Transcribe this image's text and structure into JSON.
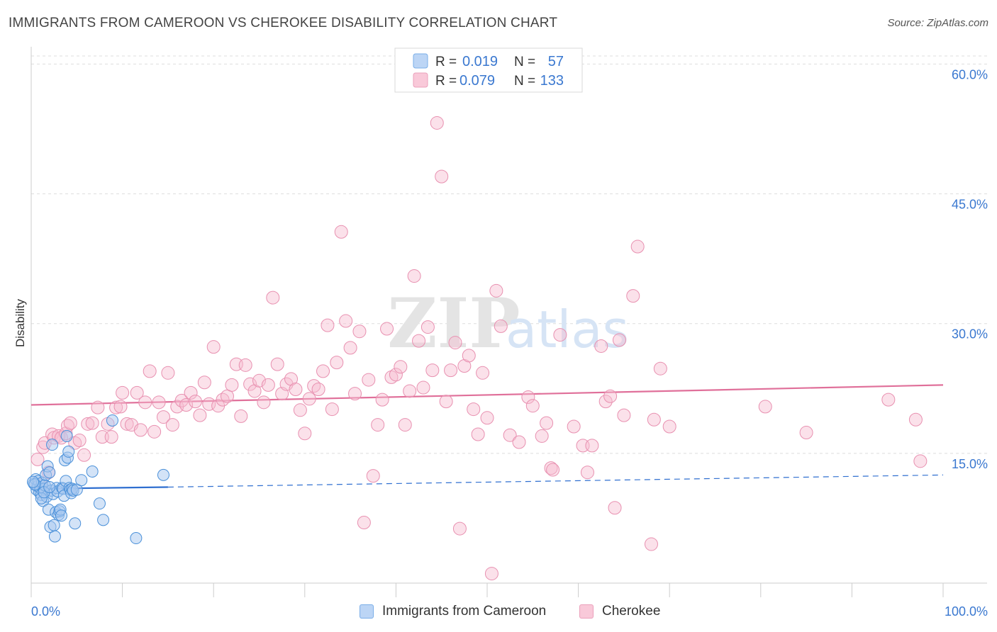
{
  "title": "IMMIGRANTS FROM CAMEROON VS CHEROKEE DISABILITY CORRELATION CHART",
  "source": "Source: ZipAtlas.com",
  "watermark": {
    "zip": "ZIP",
    "atlas": "atlas"
  },
  "colors": {
    "blue_fill": "#a8c8f0",
    "blue_stroke": "#4a90d9",
    "blue_line": "#2f6fd0",
    "pink_fill": "#f7bcd0",
    "pink_stroke": "#e890b0",
    "pink_line": "#e0709a",
    "axis_text": "#3a78d0",
    "grid": "#dddddd"
  },
  "legend_top": {
    "rows": [
      {
        "r_label": "R =",
        "r_value": "0.019",
        "n_label": "N =",
        "n_value": "57"
      },
      {
        "r_label": "R =",
        "r_value": "0.079",
        "n_label": "N =",
        "n_value": "133"
      }
    ]
  },
  "chart_data": {
    "type": "scatter",
    "title": "IMMIGRANTS FROM CAMEROON VS CHEROKEE DISABILITY CORRELATION CHART",
    "xlabel": "",
    "ylabel": "Disability",
    "xlim": [
      0,
      100
    ],
    "ylim": [
      0,
      62
    ],
    "x_tick_labels": [
      "0.0%",
      "100.0%"
    ],
    "y_ticks": [
      15,
      30,
      45,
      60
    ],
    "y_tick_labels": [
      "15.0%",
      "30.0%",
      "45.0%",
      "60.0%"
    ],
    "grid": true,
    "legend_position": "top-center",
    "series": [
      {
        "name": "Immigrants from Cameroon",
        "r": 0.019,
        "n": 57,
        "trend_solid": [
          [
            0,
            10.9
          ],
          [
            15,
            11.1
          ]
        ],
        "trend_dashed": [
          [
            15,
            11.1
          ],
          [
            100,
            12.5
          ]
        ],
        "points": [
          [
            0.3,
            11.5
          ],
          [
            0.5,
            12.0
          ],
          [
            0.6,
            10.8
          ],
          [
            0.7,
            11.2
          ],
          [
            0.8,
            11.8
          ],
          [
            0.9,
            10.5
          ],
          [
            1.0,
            11.0
          ],
          [
            1.1,
            10.2
          ],
          [
            1.2,
            11.6
          ],
          [
            1.3,
            9.5
          ],
          [
            1.4,
            10.9
          ],
          [
            1.5,
            11.3
          ],
          [
            1.6,
            12.5
          ],
          [
            1.7,
            10.0
          ],
          [
            1.8,
            13.5
          ],
          [
            1.9,
            8.5
          ],
          [
            2.0,
            12.8
          ],
          [
            2.1,
            6.5
          ],
          [
            2.2,
            10.7
          ],
          [
            2.3,
            16.0
          ],
          [
            2.4,
            10.3
          ],
          [
            2.5,
            6.7
          ],
          [
            2.6,
            5.4
          ],
          [
            2.7,
            8.2
          ],
          [
            2.8,
            11.0
          ],
          [
            2.9,
            10.6
          ],
          [
            3.0,
            7.9
          ],
          [
            3.1,
            8.3
          ],
          [
            3.2,
            8.5
          ],
          [
            3.3,
            7.8
          ],
          [
            3.4,
            11.0
          ],
          [
            3.5,
            10.9
          ],
          [
            3.6,
            10.1
          ],
          [
            3.7,
            14.2
          ],
          [
            3.8,
            11.8
          ],
          [
            3.9,
            17.0
          ],
          [
            4.0,
            14.5
          ],
          [
            4.1,
            15.2
          ],
          [
            4.2,
            11.0
          ],
          [
            4.3,
            10.8
          ],
          [
            4.4,
            10.4
          ],
          [
            4.5,
            10.9
          ],
          [
            4.6,
            10.7
          ],
          [
            4.8,
            6.9
          ],
          [
            5.0,
            10.8
          ],
          [
            5.5,
            11.9
          ],
          [
            6.7,
            12.9
          ],
          [
            7.5,
            9.2
          ],
          [
            7.9,
            7.3
          ],
          [
            8.9,
            18.8
          ],
          [
            11.5,
            5.2
          ],
          [
            14.5,
            12.5
          ],
          [
            1.1,
            9.8
          ],
          [
            1.4,
            10.5
          ],
          [
            0.4,
            11.4
          ],
          [
            0.2,
            11.7
          ],
          [
            2.0,
            11.1
          ]
        ]
      },
      {
        "name": "Cherokee",
        "r": 0.079,
        "n": 133,
        "trend": [
          [
            0,
            20.6
          ],
          [
            100,
            22.9
          ]
        ],
        "points": [
          [
            0.7,
            14.3
          ],
          [
            1.1,
            11.3
          ],
          [
            1.3,
            15.7
          ],
          [
            1.5,
            16.2
          ],
          [
            1.9,
            12.8
          ],
          [
            2.3,
            17.2
          ],
          [
            2.5,
            16.8
          ],
          [
            3.0,
            17.0
          ],
          [
            3.3,
            16.8
          ],
          [
            3.8,
            17.3
          ],
          [
            4.0,
            18.2
          ],
          [
            4.3,
            18.5
          ],
          [
            4.8,
            16.2
          ],
          [
            5.3,
            16.5
          ],
          [
            5.8,
            14.8
          ],
          [
            6.2,
            18.4
          ],
          [
            6.7,
            18.5
          ],
          [
            7.3,
            20.3
          ],
          [
            7.8,
            16.9
          ],
          [
            8.4,
            18.4
          ],
          [
            8.8,
            16.9
          ],
          [
            9.3,
            20.3
          ],
          [
            9.8,
            20.4
          ],
          [
            10.0,
            22.0
          ],
          [
            10.5,
            18.4
          ],
          [
            11.0,
            18.3
          ],
          [
            11.6,
            22.0
          ],
          [
            12.0,
            17.7
          ],
          [
            12.5,
            20.9
          ],
          [
            13.0,
            24.5
          ],
          [
            13.5,
            17.5
          ],
          [
            14.0,
            20.9
          ],
          [
            14.5,
            19.2
          ],
          [
            15.0,
            24.3
          ],
          [
            15.5,
            18.3
          ],
          [
            16.0,
            20.4
          ],
          [
            16.5,
            21.1
          ],
          [
            17.0,
            20.6
          ],
          [
            17.5,
            22.0
          ],
          [
            18.0,
            21.0
          ],
          [
            18.5,
            19.4
          ],
          [
            19.0,
            23.2
          ],
          [
            19.5,
            20.7
          ],
          [
            20.0,
            27.3
          ],
          [
            20.5,
            20.5
          ],
          [
            21.0,
            21.2
          ],
          [
            21.5,
            21.6
          ],
          [
            22.0,
            22.9
          ],
          [
            22.5,
            25.3
          ],
          [
            23.0,
            19.3
          ],
          [
            23.5,
            25.2
          ],
          [
            24.0,
            23.0
          ],
          [
            24.5,
            22.2
          ],
          [
            25.0,
            23.4
          ],
          [
            25.5,
            20.9
          ],
          [
            26.0,
            22.9
          ],
          [
            26.5,
            33.0
          ],
          [
            27.0,
            25.3
          ],
          [
            27.5,
            21.9
          ],
          [
            28.0,
            23.0
          ],
          [
            28.5,
            23.6
          ],
          [
            29.0,
            22.4
          ],
          [
            29.5,
            20.0
          ],
          [
            30.0,
            17.3
          ],
          [
            30.5,
            21.3
          ],
          [
            31.0,
            22.8
          ],
          [
            31.5,
            22.4
          ],
          [
            32.0,
            24.5
          ],
          [
            32.5,
            29.8
          ],
          [
            33.0,
            20.1
          ],
          [
            33.5,
            25.5
          ],
          [
            34.0,
            40.6
          ],
          [
            34.5,
            30.3
          ],
          [
            35.0,
            27.2
          ],
          [
            35.5,
            21.9
          ],
          [
            36.0,
            29.1
          ],
          [
            36.5,
            7.0
          ],
          [
            37.0,
            23.5
          ],
          [
            37.5,
            12.4
          ],
          [
            38.0,
            18.3
          ],
          [
            38.5,
            21.2
          ],
          [
            39.0,
            29.4
          ],
          [
            39.5,
            23.8
          ],
          [
            40.0,
            24.1
          ],
          [
            40.5,
            25.0
          ],
          [
            41.0,
            18.3
          ],
          [
            41.5,
            22.2
          ],
          [
            42.0,
            35.5
          ],
          [
            42.5,
            28.0
          ],
          [
            43.0,
            22.6
          ],
          [
            43.5,
            29.6
          ],
          [
            44.0,
            24.6
          ],
          [
            44.5,
            53.2
          ],
          [
            45.0,
            47.0
          ],
          [
            45.5,
            21.0
          ],
          [
            46.0,
            24.6
          ],
          [
            46.5,
            27.8
          ],
          [
            47.0,
            6.3
          ],
          [
            47.5,
            25.1
          ],
          [
            48.0,
            26.3
          ],
          [
            48.5,
            20.1
          ],
          [
            49.0,
            17.2
          ],
          [
            49.5,
            24.3
          ],
          [
            50.0,
            19.1
          ],
          [
            50.5,
            1.1
          ],
          [
            51.0,
            33.8
          ],
          [
            51.5,
            29.7
          ],
          [
            52.5,
            17.1
          ],
          [
            53.5,
            16.3
          ],
          [
            54.5,
            21.5
          ],
          [
            55.0,
            20.5
          ],
          [
            56.0,
            17.0
          ],
          [
            56.5,
            18.5
          ],
          [
            57.0,
            13.3
          ],
          [
            57.2,
            13.1
          ],
          [
            58.0,
            28.7
          ],
          [
            59.5,
            18.1
          ],
          [
            60.5,
            15.9
          ],
          [
            61.0,
            12.8
          ],
          [
            61.5,
            15.9
          ],
          [
            62.5,
            27.4
          ],
          [
            63.0,
            21.0
          ],
          [
            63.5,
            21.6
          ],
          [
            64.0,
            8.7
          ],
          [
            64.5,
            28.1
          ],
          [
            65.0,
            19.4
          ],
          [
            66.0,
            33.2
          ],
          [
            66.5,
            38.9
          ],
          [
            68.0,
            4.5
          ],
          [
            68.3,
            18.9
          ],
          [
            69.0,
            24.8
          ],
          [
            70.0,
            18.1
          ],
          [
            80.5,
            20.4
          ],
          [
            85.0,
            17.4
          ],
          [
            94.0,
            21.2
          ],
          [
            97.0,
            18.9
          ],
          [
            97.5,
            14.1
          ]
        ]
      }
    ]
  },
  "legend_bottom": [
    {
      "label": "Immigrants from Cameroon"
    },
    {
      "label": "Cherokee"
    }
  ]
}
